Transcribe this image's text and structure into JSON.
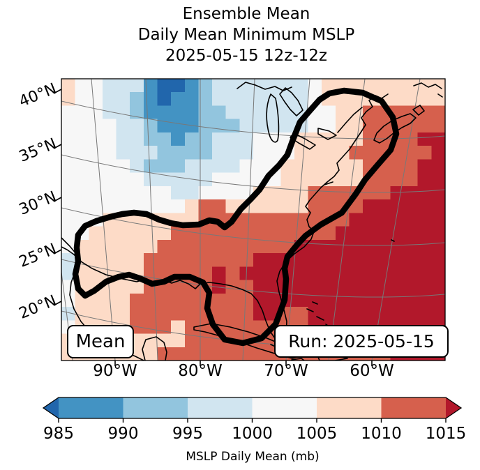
{
  "title": {
    "line1": "Ensemble Mean",
    "line2": "Daily Mean Minimum MSLP",
    "line3": "2025-05-15 12z-12z"
  },
  "map": {
    "annotation_left": "Mean",
    "annotation_right": "Run: 2025-05-15",
    "y_ticks": [
      "40°N",
      "35°N",
      "30°N",
      "25°N",
      "20°N"
    ],
    "x_ticks": [
      "90°W",
      "80°W",
      "70°W",
      "60°W"
    ]
  },
  "colorbar": {
    "ticks": [
      "985",
      "990",
      "995",
      "1000",
      "1005",
      "1010",
      "1015"
    ],
    "label": "MSLP Daily Mean (mb)",
    "segment_colors": [
      "#4393c3",
      "#92c5de",
      "#d1e5f0",
      "#f7f7f7",
      "#fddbc7",
      "#d6604d"
    ],
    "under_color": "#2166ac",
    "over_color": "#b2182b"
  },
  "chart_data": {
    "type": "heatmap",
    "title": "Ensemble Mean Daily Mean Minimum MSLP 2025-05-15 12z-12z",
    "units": "mb",
    "ylabel_ticks_lat": [
      40,
      35,
      30,
      25,
      20
    ],
    "xlabel_ticks_lon": [
      -90,
      -80,
      -70,
      -60
    ],
    "levels": [
      985,
      990,
      995,
      1000,
      1005,
      1010,
      1015
    ],
    "colorbar_label": "MSLP Daily Mean (mb)",
    "legend_colors": {
      "A": "#2166ac",
      "B": "#4393c3",
      "C": "#92c5de",
      "D": "#d1e5f0",
      "E": "#f7f7f7",
      "F": "#fddbc7",
      "G": "#d6604d",
      "H": "#b2182b"
    },
    "bin_values_mb": {
      "A": "<985",
      "B": "985-990",
      "C": "990-995",
      "D": "995-1000",
      "E": "1000-1005",
      "F": "1005-1010",
      "G": "1010-1015",
      "H": ">1015"
    },
    "grid_note": "28x21 coarse grid of MSLP bins over map area, row 0 = north (~41N), col 0 = west (~97W)",
    "grid_rows": [
      "FEEDDDBAABCDDDDDDDEFFFFFFFFF",
      "FEEDDCBABBCDDDDDDDEFFFFFFFFF",
      "EEEDDCBBBBCCDDDDDDEEFFGGGGGG",
      "EEEEDDCBBBCCCDDDDDEEFFGGGGGG",
      "EEEEDDCCBCCDDDEEEFFFFFGGGGHH",
      "EEEEDDDCCCCDDDEEEFFFFGGGGGGH",
      "EEEEEDCCCDDDDEEEFFFFFFGGGGHH",
      "EEEEEEDDDDDEEEEEFFFFFFGGGGHH",
      "EEEEEEEEDDEEEEFFFFGGGGGGHHHH",
      "EEEEEEEEEFGGFFFFFFGGGGHHHHHH",
      "EEEFFFFFFFGGGGGGGGGGGHHHHHHH",
      "EEFFFFFFGGGGGGGGGGGGHHHHHHHH",
      "EFFFFFFGGGGGGGGGGHHHHHHHHHHH",
      "DFFFFFGGGGGGGGHHHHHHHHHHHHHH",
      "DFFFFFGGGGGHGHHHHHHHHHHHHHHH",
      "EFFFFFGGGGGHGGHHHHHHHHHHHHHH",
      "EFFFFGGGGGGGGGHHHHHHHHHHHHHH",
      "DFFFFGGGGGGGGGHHGGHHHHHHHHHH",
      "EFFFFGGGFGGGGGGGGGHHHHHHHHHH",
      "FFFFFFFFFGGGGGGGGGGGGHHHHHHH",
      "FFFFFFFGGGGGGGGGGGGGGGGGHHHH"
    ],
    "thick_contour": "single bold closed contour enclosing the Gulf of Mexico, Florida and the US East Coast up to Nova Scotia",
    "annotations": [
      "Mean",
      "Run: 2025-05-15"
    ]
  },
  "style": {
    "gridline_color": "#787878",
    "coast_color": "#000000",
    "contour_color": "#000000"
  }
}
